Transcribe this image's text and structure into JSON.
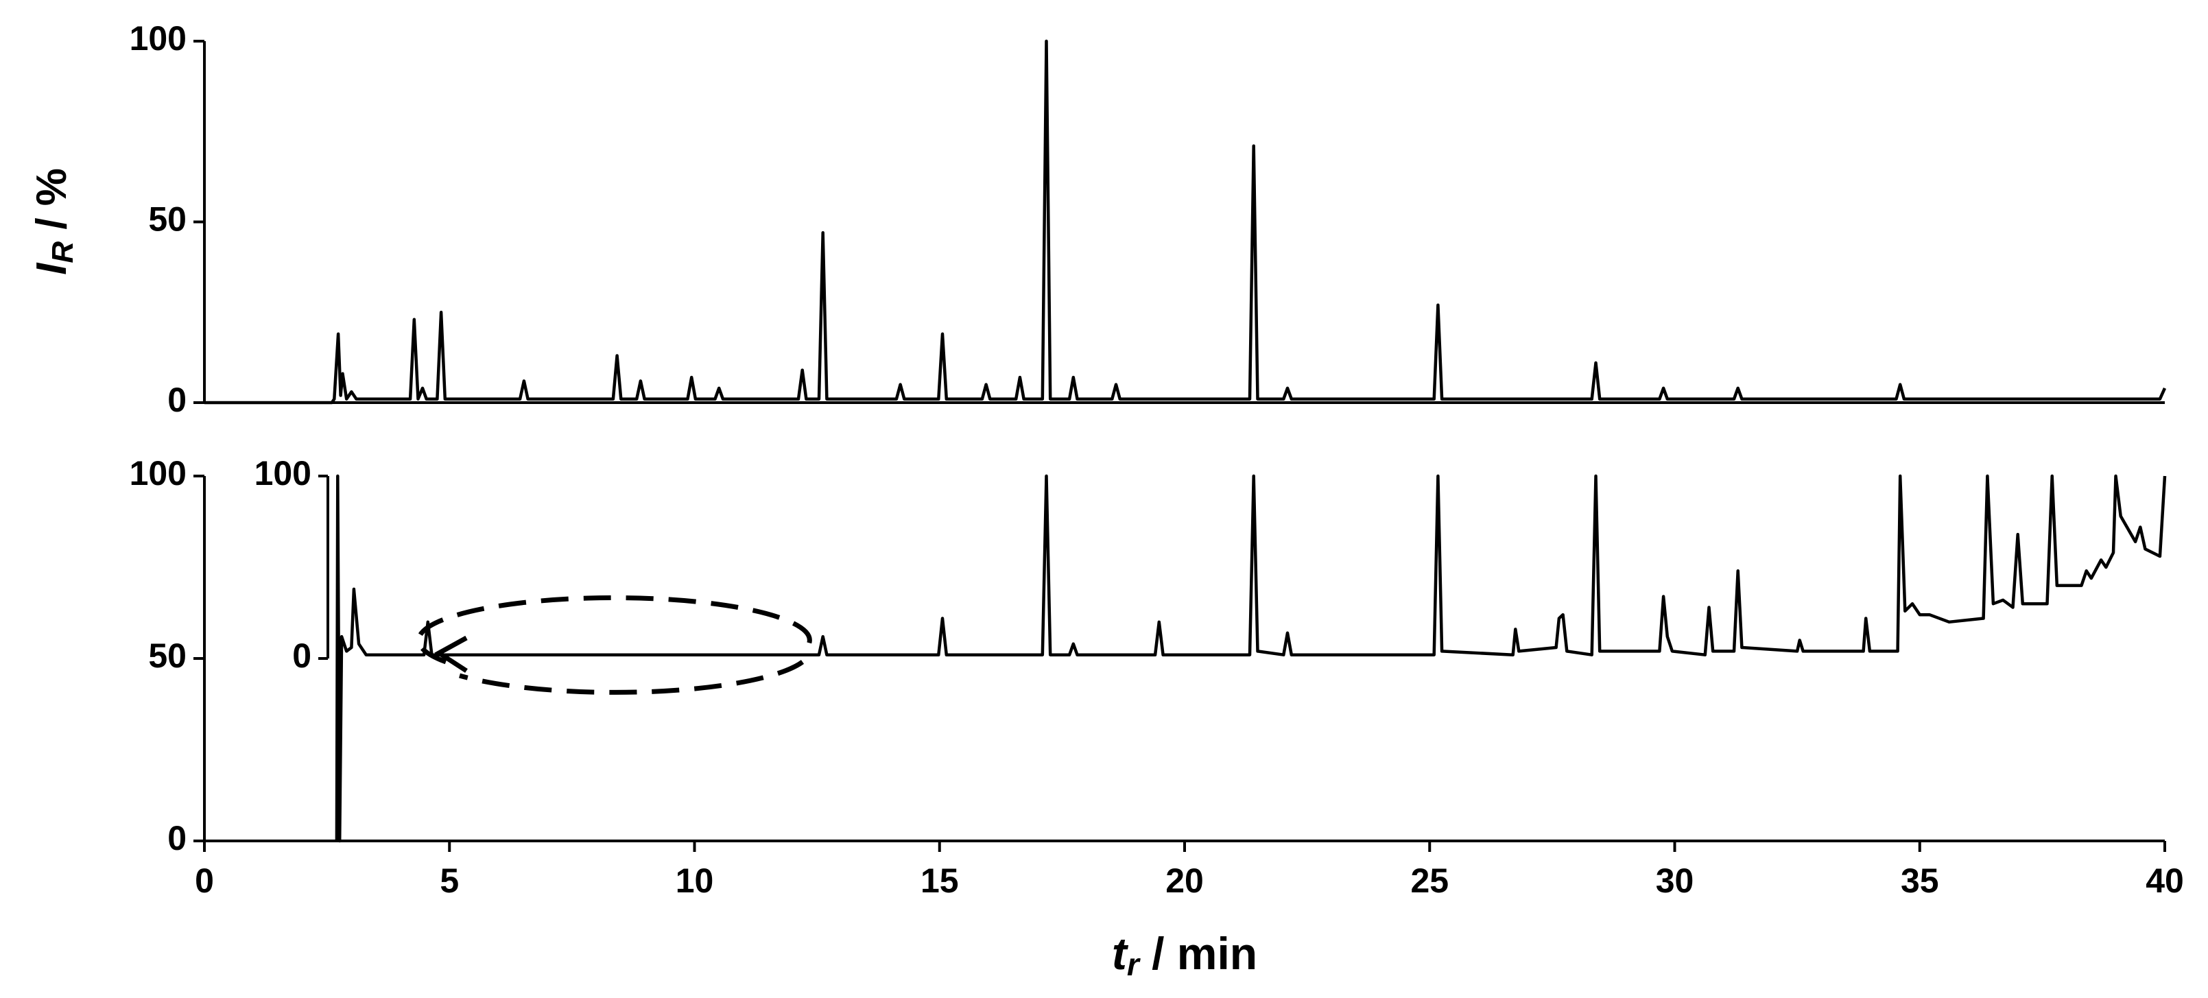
{
  "chart_data": [
    {
      "type": "line",
      "y_label": {
        "main": "I",
        "sub": "R",
        "rest": " / %"
      },
      "xlim": [
        0,
        40
      ],
      "ylim": [
        0,
        100
      ],
      "yticks": [
        0,
        50,
        100
      ],
      "series": [
        {
          "color": "#000000",
          "x": [
            0,
            2.6,
            2.65,
            2.73,
            2.78,
            2.82,
            2.9,
            3.0,
            3.1,
            4.2,
            4.28,
            4.36,
            4.45,
            4.53,
            4.75,
            4.83,
            4.91,
            6.44,
            6.52,
            6.6,
            8.34,
            8.42,
            8.5,
            8.82,
            8.9,
            8.98,
            9.86,
            9.94,
            10.02,
            10.42,
            10.5,
            10.58,
            12.12,
            12.2,
            12.28,
            12.54,
            12.62,
            12.7,
            14.12,
            14.2,
            14.28,
            14.98,
            15.06,
            15.14,
            15.87,
            15.95,
            16.03,
            16.56,
            16.64,
            16.72,
            17.1,
            17.18,
            17.26,
            17.65,
            17.73,
            17.81,
            18.52,
            18.6,
            18.68,
            21.33,
            21.41,
            21.49,
            22.02,
            22.1,
            22.18,
            25.09,
            25.17,
            25.25,
            28.31,
            28.39,
            28.47,
            29.69,
            29.77,
            29.85,
            31.21,
            31.29,
            31.37,
            34.52,
            34.6,
            34.68,
            39.9,
            40
          ],
          "values": [
            0,
            0,
            1,
            19,
            2,
            8,
            1,
            3,
            1,
            1,
            23,
            1,
            4,
            1,
            1,
            25,
            1,
            1,
            6,
            1,
            1,
            13,
            1,
            1,
            6,
            1,
            1,
            7,
            1,
            1,
            4,
            1,
            1,
            9,
            1,
            1,
            47,
            1,
            1,
            5,
            1,
            1,
            19,
            1,
            1,
            5,
            1,
            1,
            7,
            1,
            1,
            100,
            1,
            1,
            7,
            1,
            1,
            5,
            1,
            1,
            71,
            1,
            1,
            4,
            1,
            1,
            27,
            1,
            1,
            11,
            1,
            1,
            4,
            1,
            1,
            4,
            1,
            1,
            5,
            1,
            1,
            4
          ]
        }
      ]
    },
    {
      "type": "line",
      "x_label": {
        "main": "t",
        "sub": "r",
        "rest": " / min"
      },
      "xlim": [
        0,
        40
      ],
      "xticks": [
        0,
        5,
        10,
        15,
        20,
        25,
        30,
        35,
        40
      ],
      "ylim": [
        0,
        100
      ],
      "yticks": [
        0,
        50,
        100
      ],
      "y2lim": [
        -100,
        100
      ],
      "y2ticks": [
        0,
        100
      ],
      "series": [
        {
          "color": "#000000",
          "axis": "y2",
          "x": [
            2.7,
            2.72,
            2.76,
            2.8,
            2.9,
            3.0,
            3.05,
            3.15,
            3.3,
            4.48,
            4.56,
            4.64,
            12.54,
            12.62,
            12.7,
            14.98,
            15.06,
            15.14,
            17.1,
            17.18,
            17.26,
            17.65,
            17.73,
            17.81,
            19.4,
            19.48,
            19.56,
            21.33,
            21.41,
            21.49,
            22.02,
            22.1,
            22.18,
            25.09,
            25.17,
            25.25,
            26.7,
            26.75,
            26.82,
            27.58,
            27.64,
            27.72,
            27.8,
            28.31,
            28.39,
            28.47,
            29.69,
            29.77,
            29.85,
            29.95,
            30.62,
            30.7,
            30.78,
            31.21,
            31.29,
            31.37,
            32.5,
            32.55,
            32.62,
            33.85,
            33.9,
            33.98,
            34.55,
            34.6,
            34.7,
            34.85,
            35.0,
            35.2,
            35.6,
            36.3,
            36.38,
            36.5,
            36.7,
            36.9,
            37.0,
            37.1,
            37.6,
            37.7,
            37.8,
            38.3,
            38.4,
            38.5,
            38.7,
            38.8,
            38.95,
            39.0,
            39.1,
            39.4,
            39.5,
            39.6,
            39.9,
            40
          ],
          "values": [
            -100,
            100,
            -100,
            12,
            4,
            6,
            38,
            8,
            2,
            2,
            20,
            2,
            2,
            12,
            2,
            2,
            22,
            2,
            2,
            100,
            2,
            2,
            8,
            2,
            2,
            20,
            2,
            2,
            100,
            4,
            2,
            14,
            2,
            2,
            100,
            4,
            2,
            16,
            4,
            6,
            22,
            24,
            4,
            2,
            100,
            4,
            4,
            34,
            12,
            4,
            2,
            28,
            4,
            4,
            48,
            6,
            4,
            10,
            4,
            4,
            22,
            4,
            4,
            100,
            26,
            30,
            24,
            24,
            20,
            22,
            100,
            30,
            32,
            28,
            68,
            30,
            30,
            100,
            40,
            40,
            48,
            44,
            54,
            50,
            58,
            100,
            78,
            64,
            72,
            60,
            56,
            100
          ]
        }
      ]
    }
  ]
}
